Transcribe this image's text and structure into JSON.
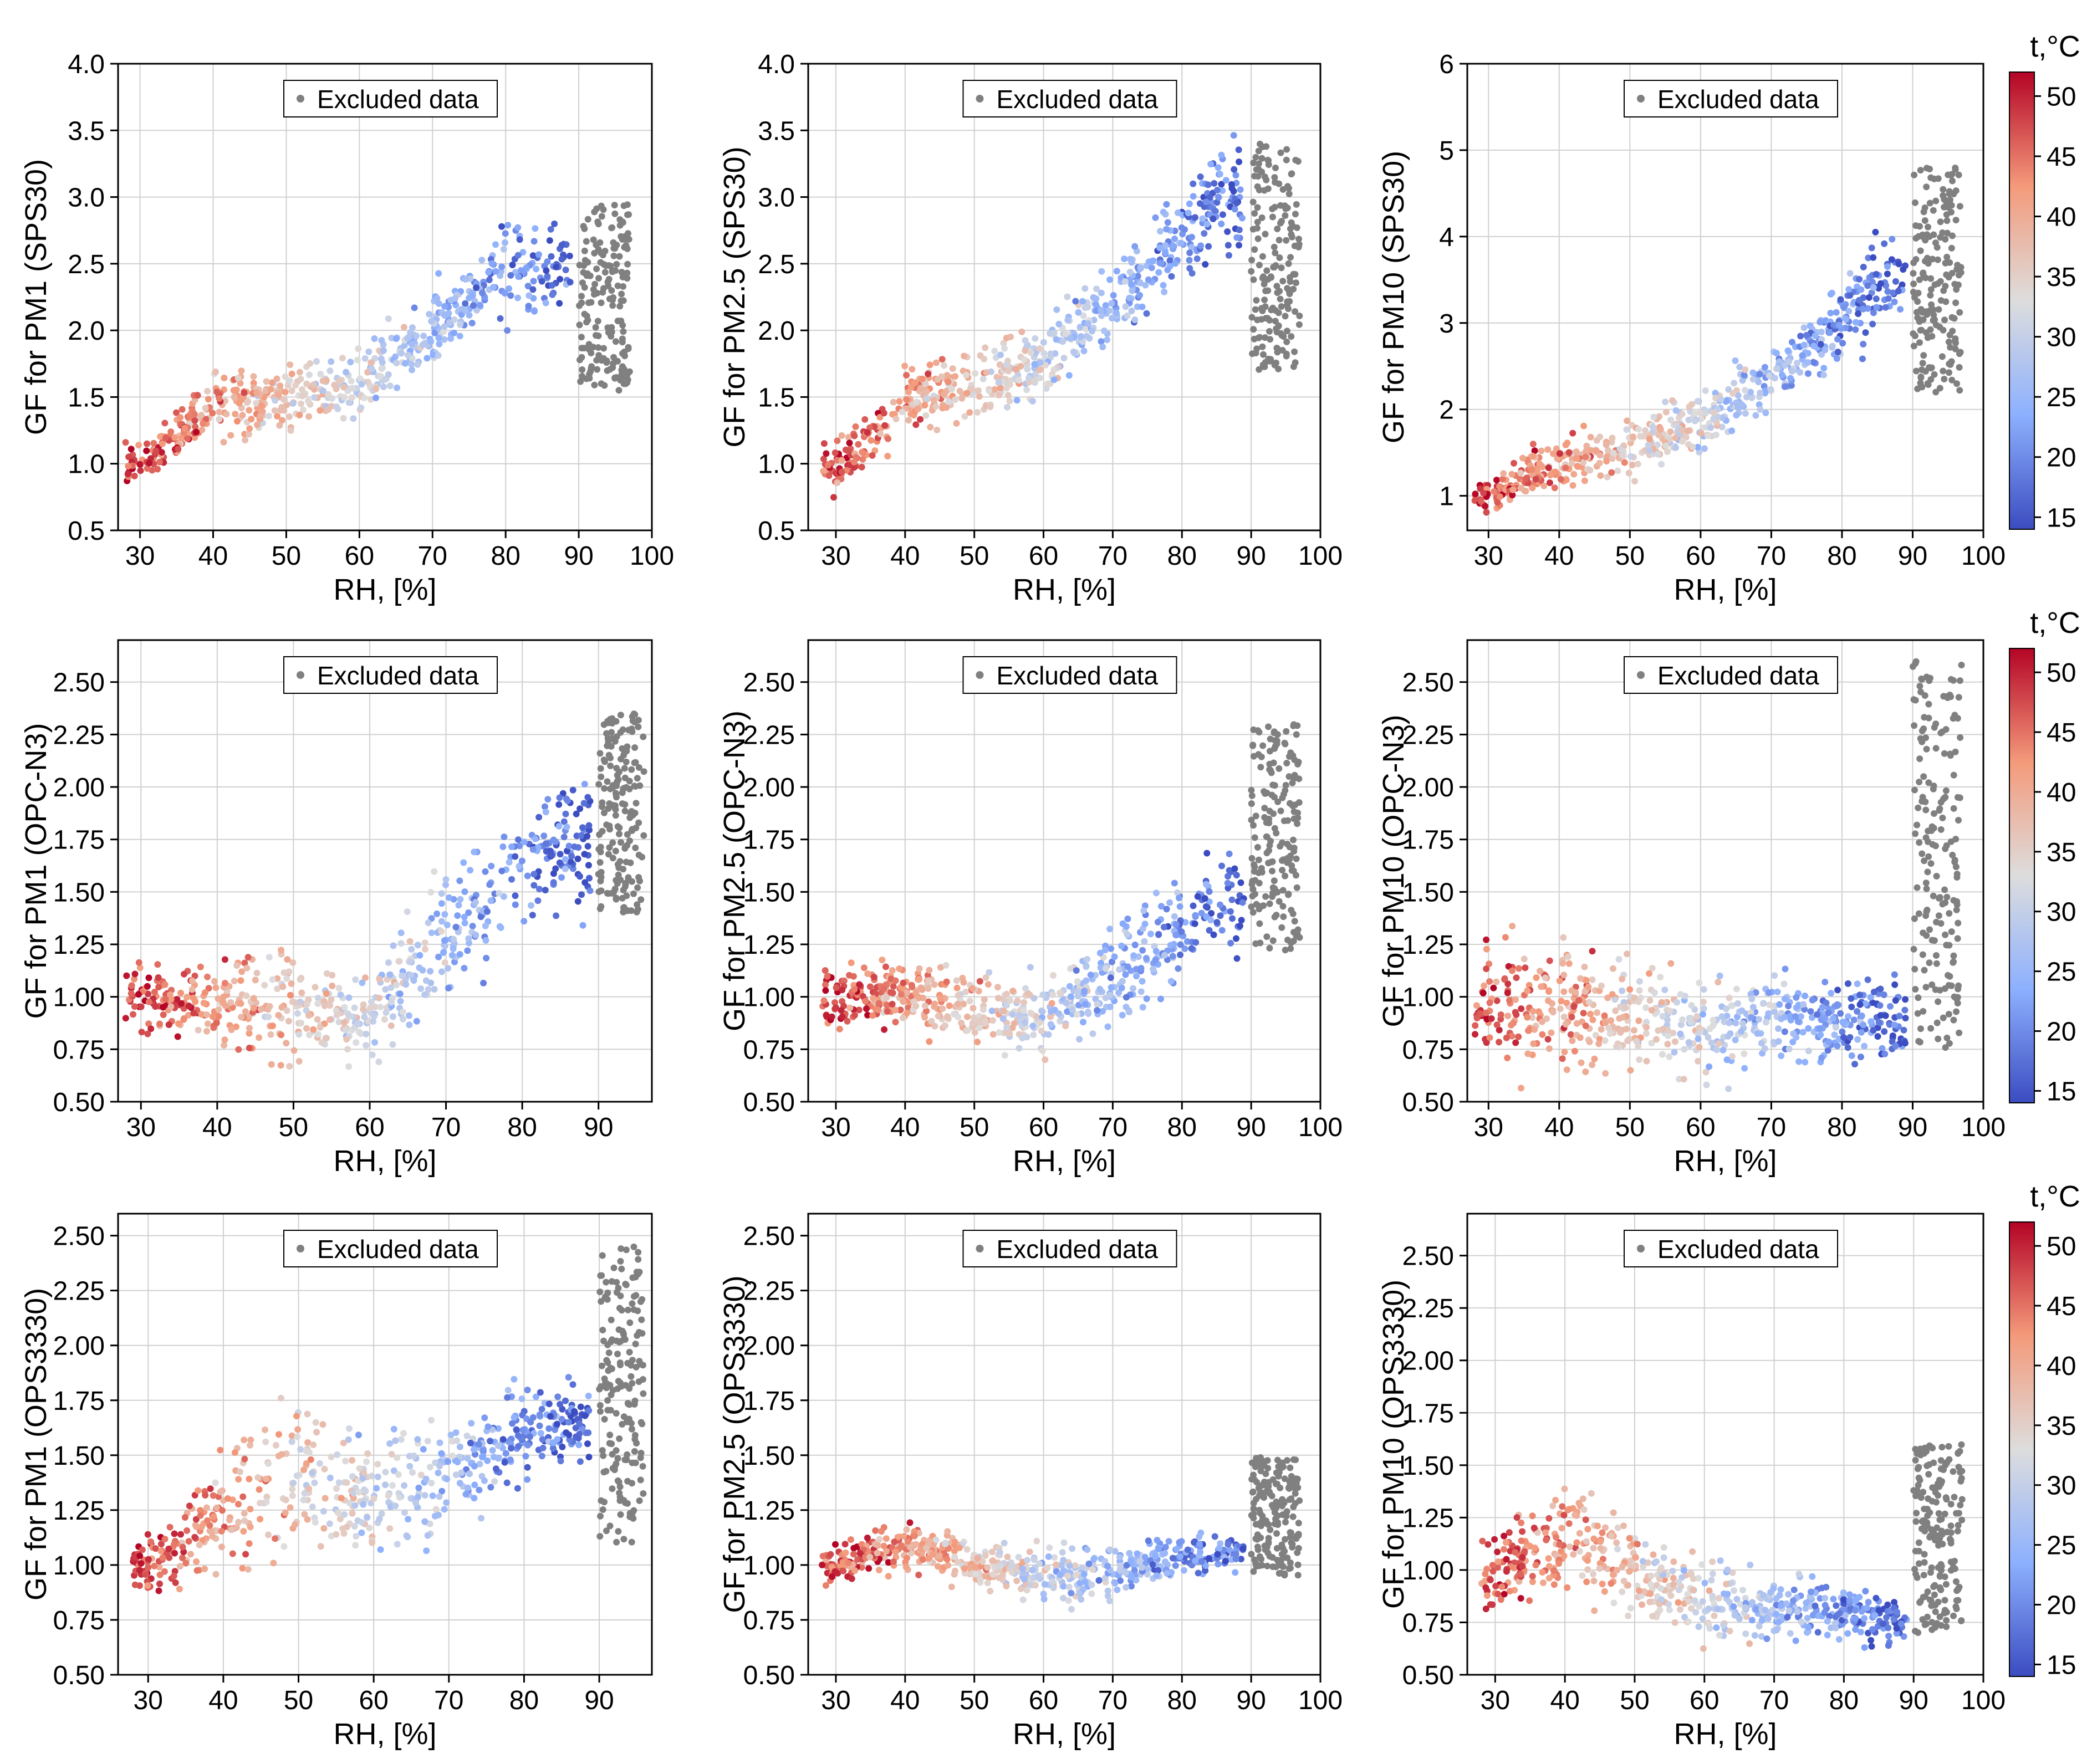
{
  "figure": {
    "excluded_color": "#808080",
    "legend_label": "Excluded data",
    "x_label": "RH, [%]",
    "colorbar": {
      "title": "t,°C",
      "min": 14,
      "max": 52,
      "ticks": [
        15,
        20,
        25,
        30,
        35,
        40,
        45,
        50
      ],
      "colormap": "coolwarm",
      "color_low": "#3b4cc0",
      "color_mid": "#dddddd",
      "color_high": "#b40426"
    }
  },
  "chart_data": [
    {
      "type": "scatter",
      "ylabel": "GF for PM1 (SPS30)",
      "xlim": [
        27,
        100
      ],
      "xticks": [
        30,
        40,
        50,
        60,
        70,
        80,
        90,
        100
      ],
      "ylim": [
        0.5,
        4.0
      ],
      "yticks": [
        "0.5",
        "1.0",
        "1.5",
        "2.0",
        "2.5",
        "3.0",
        "3.5",
        "4.0"
      ],
      "series": [
        {
          "name": "Excluded data",
          "x_range": [
            90,
            97
          ],
          "y_range": [
            1.55,
            2.95
          ]
        }
      ],
      "trend": [
        [
          30,
          1.0,
          0.35
        ],
        [
          40,
          1.45,
          0.45
        ],
        [
          50,
          1.5,
          0.45
        ],
        [
          60,
          1.6,
          0.45
        ],
        [
          70,
          2.0,
          0.5
        ],
        [
          80,
          2.45,
          0.6
        ],
        [
          85,
          2.5,
          0.7
        ]
      ]
    },
    {
      "type": "scatter",
      "ylabel": "GF for PM2.5 (SPS30)",
      "xlim": [
        26,
        100
      ],
      "xticks": [
        30,
        40,
        50,
        60,
        70,
        80,
        90,
        100
      ],
      "ylim": [
        0.5,
        4.0
      ],
      "yticks": [
        "0.5",
        "1.0",
        "1.5",
        "2.0",
        "2.5",
        "3.0",
        "3.5",
        "4.0"
      ],
      "series": [
        {
          "name": "Excluded data",
          "x_range": [
            90,
            97
          ],
          "y_range": [
            1.7,
            3.4
          ]
        }
      ],
      "trend": [
        [
          30,
          0.95,
          0.35
        ],
        [
          40,
          1.45,
          0.5
        ],
        [
          50,
          1.6,
          0.5
        ],
        [
          60,
          1.75,
          0.5
        ],
        [
          70,
          2.2,
          0.55
        ],
        [
          80,
          2.7,
          0.65
        ],
        [
          85,
          3.0,
          0.8
        ]
      ]
    },
    {
      "type": "scatter",
      "ylabel": "GF for PM10 (SPS30)",
      "xlim": [
        27,
        100
      ],
      "xticks": [
        30,
        40,
        50,
        60,
        70,
        80,
        90,
        100
      ],
      "ylim": [
        0.6,
        6.0
      ],
      "yticks": [
        "1",
        "2",
        "3",
        "4",
        "5",
        "6"
      ],
      "series": [
        {
          "name": "Excluded data",
          "x_range": [
            90,
            97
          ],
          "y_range": [
            2.2,
            4.8
          ]
        }
      ],
      "trend": [
        [
          30,
          1.0,
          0.4
        ],
        [
          40,
          1.4,
          0.6
        ],
        [
          50,
          1.6,
          0.6
        ],
        [
          60,
          1.8,
          0.6
        ],
        [
          70,
          2.4,
          0.7
        ],
        [
          80,
          3.0,
          0.8
        ],
        [
          85,
          3.5,
          1.2
        ]
      ]
    },
    {
      "type": "scatter",
      "ylabel": "GF for PM1 (OPC-N3)",
      "xlim": [
        27,
        97
      ],
      "xticks": [
        30,
        40,
        50,
        60,
        70,
        80,
        90,
        100
      ],
      "ylim": [
        0.5,
        2.7
      ],
      "yticks": [
        "0.50",
        "0.75",
        "1.00",
        "1.25",
        "1.50",
        "1.75",
        "2.00",
        "2.25",
        "2.50"
      ],
      "series": [
        {
          "name": "Excluded data",
          "x_range": [
            90,
            96
          ],
          "y_range": [
            1.4,
            2.35
          ]
        }
      ],
      "trend": [
        [
          30,
          1.0,
          0.3
        ],
        [
          40,
          0.95,
          0.35
        ],
        [
          50,
          0.95,
          0.5
        ],
        [
          60,
          0.9,
          0.35
        ],
        [
          70,
          1.3,
          0.6
        ],
        [
          80,
          1.6,
          0.5
        ],
        [
          85,
          1.75,
          0.6
        ]
      ]
    },
    {
      "type": "scatter",
      "ylabel": "GF for PM2.5 (OPC-N3)",
      "xlim": [
        26,
        100
      ],
      "xticks": [
        30,
        40,
        50,
        60,
        70,
        80,
        90,
        100
      ],
      "ylim": [
        0.5,
        2.7
      ],
      "yticks": [
        "0.50",
        "0.75",
        "1.00",
        "1.25",
        "1.50",
        "1.75",
        "2.00",
        "2.25",
        "2.50"
      ],
      "series": [
        {
          "name": "Excluded data",
          "x_range": [
            90,
            97
          ],
          "y_range": [
            1.2,
            2.3
          ]
        }
      ],
      "trend": [
        [
          30,
          1.0,
          0.3
        ],
        [
          40,
          1.0,
          0.3
        ],
        [
          50,
          0.95,
          0.35
        ],
        [
          60,
          0.9,
          0.3
        ],
        [
          70,
          1.1,
          0.45
        ],
        [
          80,
          1.35,
          0.45
        ],
        [
          85,
          1.45,
          0.5
        ]
      ]
    },
    {
      "type": "scatter",
      "ylabel": "GF for PM10 (OPC-N3)",
      "xlim": [
        27,
        100
      ],
      "xticks": [
        30,
        40,
        50,
        60,
        70,
        80,
        90,
        100
      ],
      "ylim": [
        0.5,
        2.7
      ],
      "yticks": [
        "0.50",
        "0.75",
        "1.00",
        "1.25",
        "1.50",
        "1.75",
        "2.00",
        "2.25",
        "2.50"
      ],
      "series": [
        {
          "name": "Excluded data",
          "x_range": [
            90,
            97
          ],
          "y_range": [
            0.75,
            2.6
          ]
        }
      ],
      "trend": [
        [
          30,
          0.95,
          0.5
        ],
        [
          40,
          0.95,
          0.6
        ],
        [
          50,
          0.9,
          0.5
        ],
        [
          60,
          0.85,
          0.45
        ],
        [
          70,
          0.9,
          0.4
        ],
        [
          80,
          0.85,
          0.35
        ],
        [
          85,
          0.9,
          0.4
        ]
      ]
    },
    {
      "type": "scatter",
      "ylabel": "GF for PM1 (OPS3330)",
      "xlim": [
        26,
        97
      ],
      "xticks": [
        30,
        40,
        50,
        60,
        70,
        80,
        90,
        100
      ],
      "ylim": [
        0.5,
        2.6
      ],
      "yticks": [
        "0.50",
        "0.75",
        "1.00",
        "1.25",
        "1.50",
        "1.75",
        "2.00",
        "2.25",
        "2.50"
      ],
      "series": [
        {
          "name": "Excluded data",
          "x_range": [
            90,
            96
          ],
          "y_range": [
            1.1,
            2.45
          ]
        }
      ],
      "trend": [
        [
          30,
          1.0,
          0.25
        ],
        [
          40,
          1.25,
          0.6
        ],
        [
          50,
          1.4,
          0.6
        ],
        [
          60,
          1.3,
          0.5
        ],
        [
          70,
          1.4,
          0.5
        ],
        [
          80,
          1.6,
          0.35
        ],
        [
          85,
          1.65,
          0.35
        ]
      ]
    },
    {
      "type": "scatter",
      "ylabel": "GF for PM2.5 (OPS3330)",
      "xlim": [
        26,
        100
      ],
      "xticks": [
        30,
        40,
        50,
        60,
        70,
        80,
        90,
        100
      ],
      "ylim": [
        0.5,
        2.6
      ],
      "yticks": [
        "0.50",
        "0.75",
        "1.00",
        "1.25",
        "1.50",
        "1.75",
        "2.00",
        "2.25",
        "2.50"
      ],
      "series": [
        {
          "name": "Excluded data",
          "x_range": [
            90,
            97
          ],
          "y_range": [
            0.95,
            1.5
          ]
        }
      ],
      "trend": [
        [
          30,
          1.0,
          0.15
        ],
        [
          40,
          1.1,
          0.2
        ],
        [
          50,
          1.0,
          0.2
        ],
        [
          60,
          0.95,
          0.25
        ],
        [
          70,
          0.95,
          0.25
        ],
        [
          80,
          1.05,
          0.15
        ],
        [
          85,
          1.05,
          0.15
        ]
      ]
    },
    {
      "type": "scatter",
      "ylabel": "GF for PM10 (OPS3330)",
      "xlim": [
        26,
        100
      ],
      "xticks": [
        30,
        40,
        50,
        60,
        70,
        80,
        90,
        100
      ],
      "ylim": [
        0.5,
        2.7
      ],
      "yticks": [
        "0.50",
        "0.75",
        "1.00",
        "1.25",
        "1.50",
        "1.75",
        "2.00",
        "2.25",
        "2.50"
      ],
      "series": [
        {
          "name": "Excluded data",
          "x_range": [
            90,
            97
          ],
          "y_range": [
            0.7,
            1.6
          ]
        }
      ],
      "trend": [
        [
          30,
          1.0,
          0.35
        ],
        [
          40,
          1.15,
          0.45
        ],
        [
          50,
          1.0,
          0.4
        ],
        [
          60,
          0.85,
          0.35
        ],
        [
          70,
          0.8,
          0.3
        ],
        [
          80,
          0.8,
          0.25
        ],
        [
          85,
          0.75,
          0.2
        ]
      ]
    }
  ]
}
